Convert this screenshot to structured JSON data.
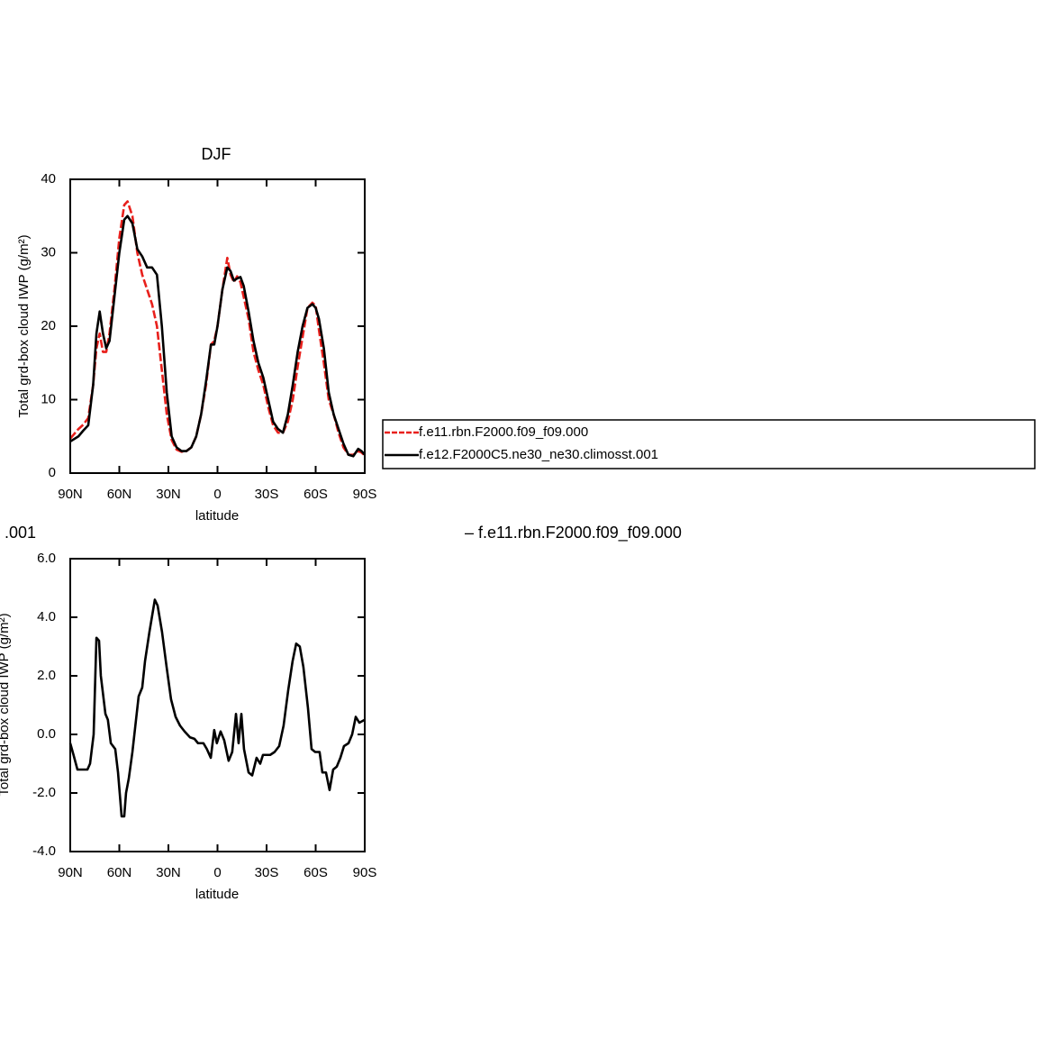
{
  "chart_data": [
    {
      "type": "line",
      "title": "DJF",
      "xlabel": "latitude",
      "ylabel": "Total grd-box cloud IWP (g/m²)",
      "x": [
        90,
        85,
        82,
        79,
        76,
        74,
        72,
        70,
        68,
        66,
        63,
        60,
        57,
        55,
        52,
        49,
        46,
        43,
        40,
        37,
        34,
        31,
        28,
        25,
        22,
        19,
        16,
        13,
        10,
        7,
        4,
        2,
        0,
        -3,
        -6,
        -8,
        -10,
        -12,
        -14,
        -16,
        -19,
        -22,
        -25,
        -28,
        -31,
        -34,
        -37,
        -40,
        -43,
        -46,
        -49,
        -52,
        -55,
        -58,
        -60,
        -62,
        -65,
        -68,
        -71,
        -74,
        -77,
        -80,
        -83,
        -86,
        -88,
        -90
      ],
      "series": [
        {
          "name": "f.e11.rbn.F2000.f09_f09.000",
          "color": "#e8201c",
          "dashed": true,
          "values": [
            4.7,
            6,
            6.6,
            7.5,
            12,
            17,
            19,
            16.5,
            16.5,
            19,
            25,
            32,
            36.5,
            37,
            35,
            30,
            27,
            25,
            23,
            20,
            14,
            8,
            4.5,
            3.2,
            2.9,
            3,
            3.5,
            5,
            8,
            12,
            17.5,
            18,
            20,
            25,
            29.3,
            27,
            26,
            26.8,
            26,
            24,
            21,
            16.5,
            14,
            12,
            9,
            6.5,
            5.5,
            5.5,
            7,
            10,
            14.5,
            18.5,
            22.5,
            23.2,
            22.8,
            19.5,
            15,
            10,
            8,
            5.5,
            3.5,
            2.5,
            2.5,
            3,
            2.8,
            2.4
          ]
        },
        {
          "name": "f.e12.F2000C5.ne30_ne30.climosst.001",
          "color": "#000000",
          "dashed": false,
          "values": [
            4.3,
            5,
            5.8,
            6.5,
            12,
            19,
            22,
            19,
            17,
            18,
            24,
            30,
            34.5,
            35,
            34,
            30.5,
            29.5,
            28,
            28,
            27,
            20,
            11,
            5,
            3.5,
            3,
            3,
            3.5,
            5,
            8,
            12.5,
            17.5,
            17.5,
            20,
            25,
            28,
            27.5,
            26.2,
            26.5,
            26.7,
            25.5,
            22,
            18,
            15,
            13,
            10,
            7,
            6,
            5.5,
            8,
            12,
            16.5,
            20,
            22.5,
            23,
            22.5,
            21,
            17,
            11,
            8,
            6,
            4,
            2.5,
            2.3,
            3.3,
            3,
            2.5
          ]
        }
      ],
      "xlim": [
        90,
        -90
      ],
      "xticks": [
        {
          "value": 90,
          "label": "90N"
        },
        {
          "value": 60,
          "label": "60N"
        },
        {
          "value": 30,
          "label": "30N"
        },
        0,
        {
          "value": -30,
          "label": "30S"
        },
        {
          "value": -60,
          "label": "60S"
        },
        {
          "value": -90,
          "label": "90S"
        }
      ],
      "ylim": [
        0,
        40
      ],
      "yticks": [
        0,
        10,
        20,
        30,
        40
      ],
      "legend": "right"
    },
    {
      "type": "line",
      "title_left": ".001",
      "title_right": "– f.e11.rbn.F2000.f09_f09.000",
      "xlabel": "latitude",
      "ylabel": "Total grd-box cloud IWP (g/m²)",
      "x": [
        90,
        88,
        85.6,
        82.3,
        79.5,
        77.9,
        75.7,
        74,
        72.4,
        71.3,
        68.5,
        67,
        65.2,
        62.5,
        60.8,
        58.6,
        57,
        55.9,
        54.2,
        52,
        50.4,
        48.2,
        46,
        44.3,
        41.6,
        38.3,
        36.6,
        33.9,
        31.1,
        28.4,
        25.6,
        22.9,
        20.1,
        16.8,
        14.1,
        11.9,
        8.6,
        6.5,
        4.1,
        2,
        0.4,
        -1.9,
        -4.1,
        -6.8,
        -9,
        -11.3,
        -12.9,
        -14.6,
        -16.2,
        -19,
        -21.2,
        -23.9,
        -26.1,
        -27.8,
        -32.2,
        -34.9,
        -37.7,
        -40.4,
        -43.2,
        -45.9,
        -48.1,
        -50.3,
        -52.5,
        -55.3,
        -57.5,
        -59.7,
        -62.4,
        -64.1,
        -66.3,
        -68.5,
        -70.7,
        -72.9,
        -75.1,
        -77.3,
        -80.1,
        -82.3,
        -84.5,
        -86.7,
        -90
      ],
      "series": [
        {
          "color": "#000000",
          "dashed": false,
          "values": [
            -0.3,
            -0.7,
            -1.2,
            -1.2,
            -1.2,
            -1,
            0,
            3.3,
            3.2,
            2,
            0.7,
            0.5,
            -0.3,
            -0.5,
            -1.3,
            -2.8,
            -2.8,
            -2,
            -1.5,
            -0.6,
            0.2,
            1.3,
            1.6,
            2.5,
            3.5,
            4.6,
            4.4,
            3.5,
            2.3,
            1.2,
            0.6,
            0.3,
            0.1,
            -0.1,
            -0.15,
            -0.3,
            -0.3,
            -0.5,
            -0.8,
            0.15,
            -0.3,
            0.1,
            -0.2,
            -0.9,
            -0.6,
            0.7,
            -0.3,
            0.7,
            -0.5,
            -1.3,
            -1.4,
            -0.8,
            -1,
            -0.7,
            -0.7,
            -0.6,
            -0.4,
            0.3,
            1.5,
            2.5,
            3.1,
            3,
            2.3,
            0.9,
            -0.5,
            -0.6,
            -0.6,
            -1.3,
            -1.3,
            -1.9,
            -1.2,
            -1.1,
            -0.8,
            -0.4,
            -0.3,
            0,
            0.6,
            0.4,
            0.5
          ]
        }
      ],
      "xlim": [
        90,
        -90
      ],
      "xticks": [
        {
          "value": 90,
          "label": "90N"
        },
        {
          "value": 60,
          "label": "60N"
        },
        {
          "value": 30,
          "label": "30N"
        },
        0,
        {
          "value": -30,
          "label": "30S"
        },
        {
          "value": -60,
          "label": "60S"
        },
        {
          "value": -90,
          "label": "90S"
        }
      ],
      "ylim": [
        -4,
        6
      ],
      "yticks": [
        {
          "value": -4,
          "label": "-4.0"
        },
        {
          "value": -2,
          "label": "-2.0"
        },
        {
          "value": 0,
          "label": "0.0"
        },
        {
          "value": 2,
          "label": "2.0"
        },
        {
          "value": 4,
          "label": "4.0"
        },
        {
          "value": 6,
          "label": "6.0"
        }
      ]
    }
  ]
}
